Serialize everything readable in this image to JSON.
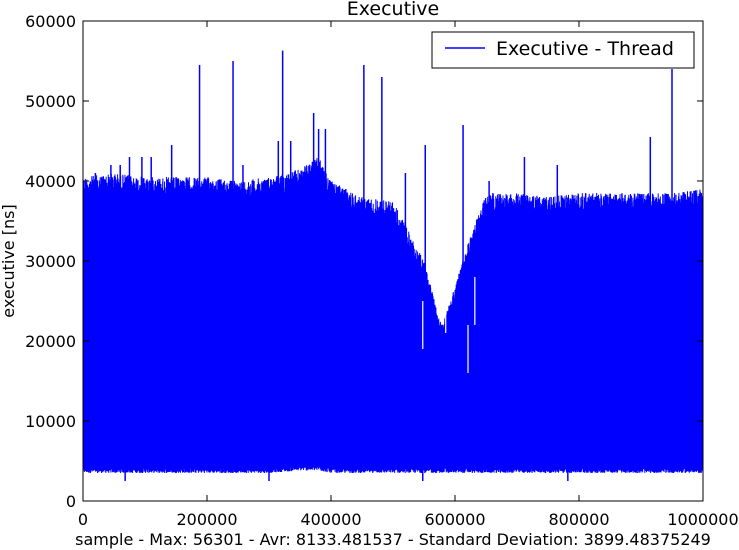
{
  "chart_data": {
    "type": "line",
    "title": "Executive",
    "xlabel": "sample - Max: 56301 - Avr: 8133.481537 - Standard Deviation: 3899.48375249",
    "ylabel": "executive [ns]",
    "xlim": [
      0,
      1000000
    ],
    "ylim": [
      0,
      60000
    ],
    "xticks": [
      0,
      200000,
      400000,
      600000,
      800000,
      1000000
    ],
    "xtick_labels": [
      "0",
      "200000",
      "400000",
      "600000",
      "800000",
      "1000000"
    ],
    "yticks": [
      0,
      10000,
      20000,
      30000,
      40000,
      50000,
      60000
    ],
    "ytick_labels": [
      "0",
      "10000",
      "20000",
      "30000",
      "40000",
      "50000",
      "60000"
    ],
    "grid": false,
    "legend_position": "top-right",
    "series": [
      {
        "name": "Executive - Thread",
        "color": "#0000ff",
        "envelope": {
          "x": [
            0,
            50000,
            100000,
            150000,
            200000,
            250000,
            300000,
            350000,
            380000,
            400000,
            450000,
            500000,
            550000,
            580000,
            620000,
            650000,
            700000,
            750000,
            800000,
            850000,
            900000,
            950000,
            1000000
          ],
          "upper": [
            40500,
            41000,
            40500,
            40500,
            40500,
            40000,
            40500,
            41500,
            43000,
            40000,
            38000,
            37500,
            30000,
            22000,
            32000,
            38500,
            38500,
            38000,
            38500,
            38500,
            38500,
            38500,
            39000
          ],
          "lower": [
            3500,
            3500,
            3500,
            3500,
            3500,
            3500,
            3500,
            3800,
            3800,
            3500,
            3500,
            3500,
            3500,
            3500,
            3500,
            3500,
            3500,
            3500,
            3500,
            3500,
            3500,
            3500,
            3500
          ]
        },
        "spikes": [
          {
            "x": 20000,
            "y": 41000
          },
          {
            "x": 45000,
            "y": 42000
          },
          {
            "x": 60000,
            "y": 42000
          },
          {
            "x": 75000,
            "y": 43000
          },
          {
            "x": 95000,
            "y": 43000
          },
          {
            "x": 110000,
            "y": 43000
          },
          {
            "x": 143000,
            "y": 44500
          },
          {
            "x": 188000,
            "y": 54500
          },
          {
            "x": 242000,
            "y": 55000
          },
          {
            "x": 258000,
            "y": 42000
          },
          {
            "x": 315000,
            "y": 45000
          },
          {
            "x": 322000,
            "y": 56300
          },
          {
            "x": 335000,
            "y": 45000
          },
          {
            "x": 372000,
            "y": 48500
          },
          {
            "x": 380000,
            "y": 46500
          },
          {
            "x": 391000,
            "y": 46500
          },
          {
            "x": 453000,
            "y": 54500
          },
          {
            "x": 482000,
            "y": 53000
          },
          {
            "x": 520000,
            "y": 41000
          },
          {
            "x": 552000,
            "y": 44500
          },
          {
            "x": 613000,
            "y": 47000
          },
          {
            "x": 655000,
            "y": 40000
          },
          {
            "x": 712000,
            "y": 43000
          },
          {
            "x": 765000,
            "y": 42000
          },
          {
            "x": 915000,
            "y": 45500
          },
          {
            "x": 950000,
            "y": 54000
          }
        ],
        "dips": [
          {
            "x": 68000,
            "y": 2500
          },
          {
            "x": 300000,
            "y": 2500
          },
          {
            "x": 548000,
            "y": 2500
          },
          {
            "x": 782000,
            "y": 2500
          }
        ],
        "low_troughs": [
          {
            "x": 548000,
            "y": 19000
          },
          {
            "x": 585000,
            "y": 21000
          },
          {
            "x": 621000,
            "y": 16000
          },
          {
            "x": 632000,
            "y": 22000
          }
        ]
      }
    ]
  }
}
